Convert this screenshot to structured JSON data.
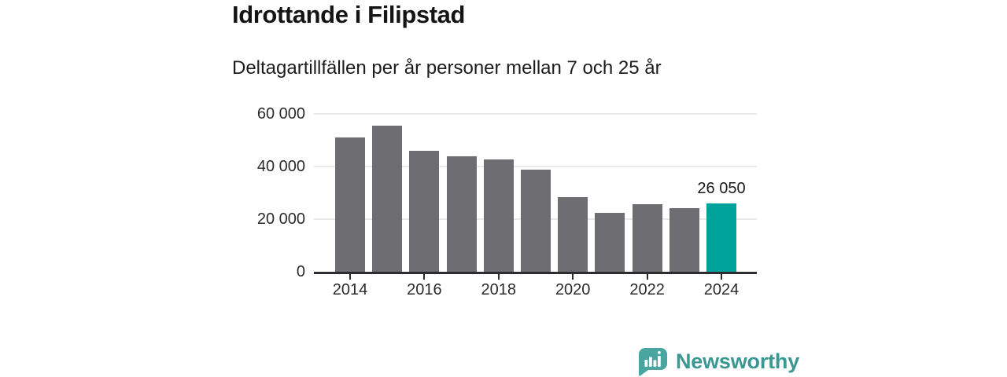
{
  "header": {
    "title": "Idrottande i Filipstad",
    "subtitle": "Deltagartillfällen per år personer mellan 7 och 25 år"
  },
  "chart_data": {
    "type": "bar",
    "title": "Idrottande i Filipstad",
    "subtitle": "Deltagartillfällen per år personer mellan 7 och 25 år",
    "x": [
      2014,
      2015,
      2016,
      2017,
      2018,
      2019,
      2020,
      2021,
      2022,
      2023,
      2024
    ],
    "values": [
      51000,
      55600,
      45900,
      43800,
      42800,
      38900,
      28400,
      22500,
      25600,
      24100,
      26050
    ],
    "highlight_index": 10,
    "annotation": {
      "x": 2024,
      "label": "26 050"
    },
    "ylim": [
      0,
      60000
    ],
    "yticks": [
      {
        "value": 0,
        "label": "0"
      },
      {
        "value": 20000,
        "label": "20 000"
      },
      {
        "value": 40000,
        "label": "40 000"
      },
      {
        "value": 60000,
        "label": "60 000"
      }
    ],
    "xticks": [
      {
        "value": 2014,
        "label": "2014"
      },
      {
        "value": 2016,
        "label": "2016"
      },
      {
        "value": 2018,
        "label": "2018"
      },
      {
        "value": 2020,
        "label": "2020"
      },
      {
        "value": 2022,
        "label": "2022"
      },
      {
        "value": 2024,
        "label": "2024"
      }
    ],
    "grid": "horizontal",
    "legend": "none",
    "colors": {
      "bar": "#6e6d72",
      "highlight": "#00a39b",
      "grid": "#e9e9e9",
      "axis": "#2d2c31",
      "label": "#2b2b2b",
      "annotation": "#1a1a1a"
    }
  },
  "footer": {
    "brand": "Newsworthy",
    "logo_colors": {
      "bubble": "#4aa4a0",
      "glyph": "#ffffff",
      "text": "#3b9792"
    }
  }
}
